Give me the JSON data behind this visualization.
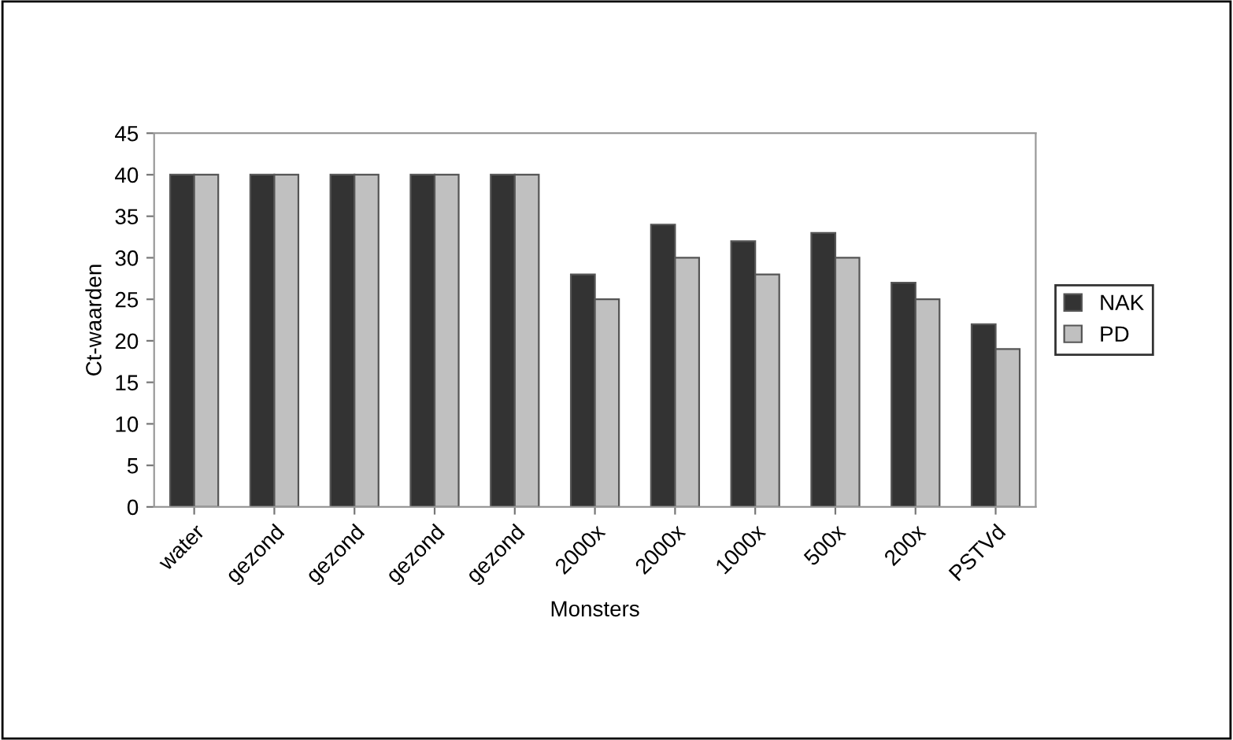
{
  "chart_data": {
    "type": "bar",
    "xlabel": "Monsters",
    "ylabel": "Ct-waarden",
    "categories": [
      "water",
      "gezond",
      "gezond",
      "gezond",
      "gezond",
      "2000x",
      "2000x",
      "1000x",
      "500x",
      "200x",
      "PSTVd"
    ],
    "series": [
      {
        "name": "NAK",
        "color": "#333333",
        "values": [
          40,
          40,
          40,
          40,
          40,
          28,
          34,
          32,
          33,
          27,
          22
        ]
      },
      {
        "name": "PD",
        "color": "#c0c0c0",
        "values": [
          40,
          40,
          40,
          40,
          40,
          25,
          30,
          28,
          30,
          25,
          19
        ]
      }
    ],
    "ylim": [
      0,
      45
    ],
    "yticks": [
      0,
      5,
      10,
      15,
      20,
      25,
      30,
      35,
      40,
      45
    ],
    "grid": false,
    "legend": "right"
  }
}
